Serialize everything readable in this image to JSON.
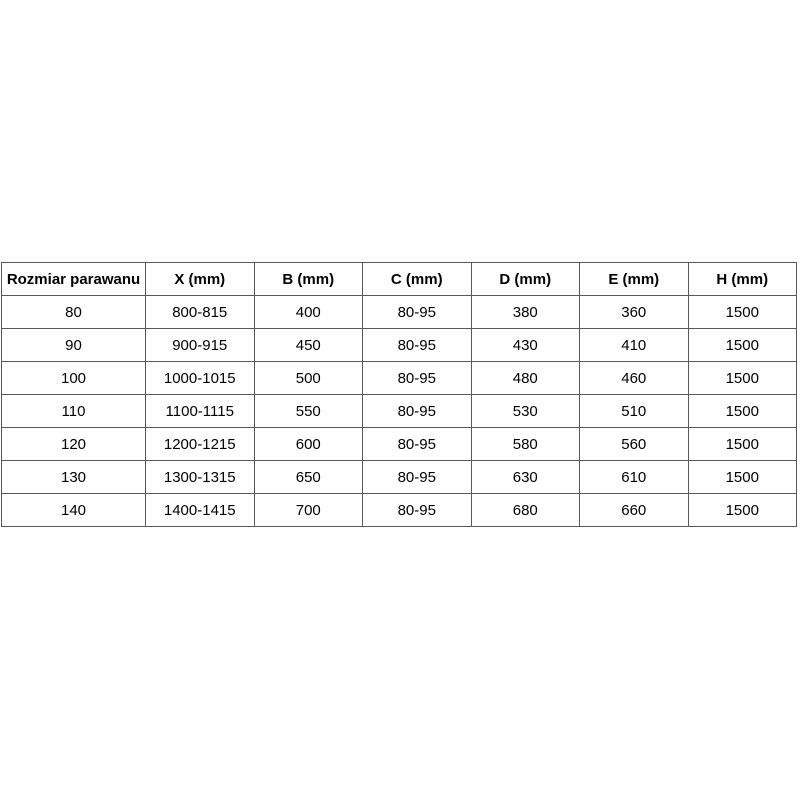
{
  "colors": {
    "background": "#ffffff",
    "border": "#595959",
    "text": "#000000"
  },
  "table": {
    "headers": [
      "Rozmiar parawanu",
      "X (mm)",
      "B (mm)",
      "C (mm)",
      "D (mm)",
      "E (mm)",
      "H (mm)"
    ],
    "rows": [
      [
        "80",
        "800-815",
        "400",
        "80-95",
        "380",
        "360",
        "1500"
      ],
      [
        "90",
        "900-915",
        "450",
        "80-95",
        "430",
        "410",
        "1500"
      ],
      [
        "100",
        "1000-1015",
        "500",
        "80-95",
        "480",
        "460",
        "1500"
      ],
      [
        "110",
        "1100-1115",
        "550",
        "80-95",
        "530",
        "510",
        "1500"
      ],
      [
        "120",
        "1200-1215",
        "600",
        "80-95",
        "580",
        "560",
        "1500"
      ],
      [
        "130",
        "1300-1315",
        "650",
        "80-95",
        "630",
        "610",
        "1500"
      ],
      [
        "140",
        "1400-1415",
        "700",
        "80-95",
        "680",
        "660",
        "1500"
      ]
    ]
  }
}
